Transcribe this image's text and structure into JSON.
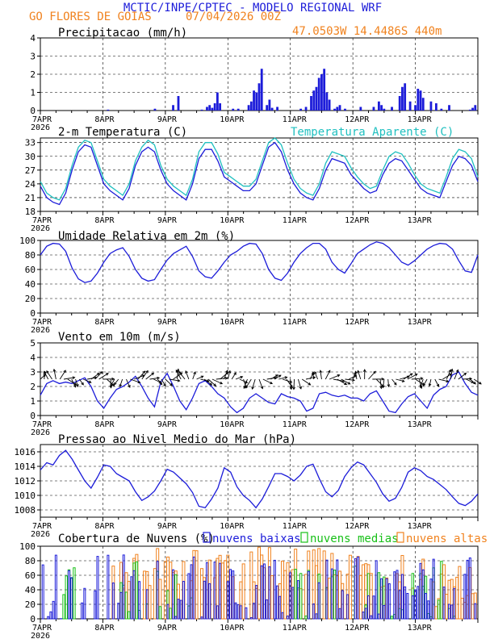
{
  "header": {
    "title": "MCTIC/INPE/CPTEC - MODELO REGIONAL WRF",
    "location": "GO FLORES DE GOIAS",
    "date": "07/04/2026 00Z",
    "coords": "47.0503W 14.4486S 440m"
  },
  "colors": {
    "blue": "#1c1cd9",
    "orange": "#f0821e",
    "cyan": "#20c0c0",
    "green": "#18c018",
    "black": "#000000"
  },
  "x_axis": {
    "ticks": [
      "7APR",
      "8APR",
      "9APR",
      "10APR",
      "11APR",
      "12APR",
      "13APR"
    ],
    "year": "2026",
    "hours_total": 168
  },
  "chart_data": [
    {
      "id": "precip",
      "type": "bar",
      "title": "Precipitacao (mm/h)",
      "ylim": [
        0,
        4
      ],
      "yticks": [
        "0",
        "1",
        "2",
        "3",
        "4"
      ],
      "hours": [
        26,
        44,
        51,
        53,
        62,
        64,
        65,
        66,
        67,
        68,
        69,
        74,
        76,
        80,
        81,
        82,
        83,
        84,
        85,
        87,
        88,
        89,
        91,
        100,
        102,
        104,
        105,
        106,
        107,
        108,
        109,
        110,
        111,
        113,
        114,
        115,
        117,
        123,
        128,
        130,
        131,
        132,
        135,
        138,
        139,
        140,
        142,
        144,
        145,
        146,
        147,
        150,
        152,
        154,
        157,
        165,
        166,
        167
      ],
      "values": [
        0.05,
        0.1,
        0.3,
        0.8,
        0.05,
        0.2,
        0.3,
        0.15,
        0.4,
        1.0,
        0.4,
        0.1,
        0.1,
        0.3,
        0.5,
        1.1,
        1.0,
        1.5,
        2.3,
        0.3,
        0.6,
        0.15,
        0.2,
        0.1,
        0.2,
        0.8,
        1.1,
        1.3,
        1.8,
        2.0,
        2.3,
        1.0,
        0.6,
        0.1,
        0.2,
        0.3,
        0.1,
        0.2,
        0.2,
        0.5,
        0.3,
        0.1,
        0.2,
        0.8,
        1.3,
        1.5,
        0.5,
        0.3,
        1.2,
        1.1,
        0.7,
        0.5,
        0.4,
        0.1,
        0.3,
        0.05,
        0.15,
        0.3
      ]
    },
    {
      "id": "temp",
      "type": "line",
      "title": "2-m Temperatura (C)",
      "legend2": "Temperatura Aparente (C)",
      "ylim": [
        18,
        34
      ],
      "yticks": [
        "18",
        "21",
        "24",
        "27",
        "30",
        "33"
      ],
      "series": [
        {
          "name": "Temperatura",
          "color": "blue",
          "values": [
            23.5,
            21,
            20,
            19.5,
            22,
            27,
            31,
            32.5,
            32,
            28,
            24,
            22.5,
            21.5,
            20.5,
            23,
            28,
            31,
            32,
            31,
            27,
            24,
            22.5,
            21.5,
            20.5,
            24,
            29.5,
            31.5,
            31.5,
            29,
            25.5,
            24.5,
            23.5,
            22.5,
            22.5,
            24,
            28,
            32,
            33,
            31,
            27,
            24,
            22,
            21,
            20.5,
            23,
            27,
            29.5,
            29,
            28.5,
            26,
            24.5,
            23,
            22,
            22.5,
            26,
            28.5,
            29.5,
            29,
            27,
            25,
            23,
            22,
            21.5,
            21,
            24.5,
            28,
            30,
            29.5,
            28,
            24.5
          ]
        },
        {
          "name": "Temperatura Aparente",
          "color": "cyan",
          "values": [
            24.5,
            22,
            21,
            20.5,
            23,
            28,
            32,
            33.5,
            33,
            29,
            25,
            23.5,
            22.5,
            21.5,
            24,
            29,
            32,
            33.5,
            32.5,
            28,
            25,
            23.5,
            22.5,
            21.5,
            25,
            31,
            33,
            33,
            30.5,
            26.5,
            25.5,
            24.5,
            23.5,
            23.5,
            25,
            29,
            33,
            34,
            32.5,
            28.5,
            25,
            23,
            22,
            21.5,
            24,
            28.5,
            31,
            30.5,
            30,
            27.5,
            25.5,
            24,
            23,
            23.5,
            27,
            30,
            31,
            30.5,
            28.5,
            26,
            24,
            23,
            22.5,
            22,
            25.5,
            29.5,
            31.5,
            31,
            29.5,
            25.5
          ]
        }
      ]
    },
    {
      "id": "rh",
      "type": "line",
      "title": "Umidade Relativa em 2m (%)",
      "ylim": [
        0,
        100
      ],
      "yticks": [
        "0",
        "20",
        "40",
        "60",
        "80",
        "100"
      ],
      "series": [
        {
          "name": "Umidade Relativa",
          "color": "blue",
          "values": [
            80,
            92,
            96,
            95,
            85,
            62,
            47,
            42,
            44,
            55,
            70,
            82,
            87,
            90,
            78,
            60,
            48,
            44,
            46,
            60,
            73,
            82,
            87,
            92,
            78,
            58,
            50,
            48,
            58,
            70,
            80,
            85,
            92,
            96,
            95,
            82,
            60,
            48,
            45,
            55,
            70,
            82,
            90,
            96,
            96,
            88,
            70,
            60,
            55,
            68,
            82,
            88,
            94,
            98,
            96,
            90,
            80,
            70,
            66,
            72,
            80,
            88,
            93,
            96,
            95,
            88,
            72,
            58,
            56,
            80
          ]
        }
      ]
    },
    {
      "id": "wind",
      "type": "line",
      "title": "Vento em 10m (m/s)",
      "ylim": [
        0,
        5
      ],
      "yticks": [
        "0",
        "1",
        "2",
        "3",
        "4",
        "5"
      ],
      "series": [
        {
          "name": "Vento",
          "color": "blue",
          "values": [
            1.4,
            2.2,
            2.4,
            2.2,
            2.3,
            2.2,
            2.4,
            2.6,
            2.0,
            1.0,
            0.5,
            1.2,
            1.8,
            2.0,
            2.3,
            2.7,
            2.0,
            1.2,
            0.6,
            2.3,
            2.9,
            2.0,
            1.0,
            0.4,
            1.2,
            2.2,
            2.4,
            2.0,
            1.5,
            1.2,
            0.6,
            0.2,
            0.5,
            1.2,
            1.5,
            1.2,
            0.9,
            0.8,
            1.5,
            1.3,
            1.2,
            1.0,
            0.3,
            0.5,
            1.5,
            1.6,
            1.4,
            1.3,
            1.4,
            1.2,
            1.2,
            1.0,
            1.5,
            1.7,
            1.0,
            0.3,
            0.2,
            0.8,
            1.3,
            1.5,
            1.0,
            0.5,
            1.4,
            1.8,
            2.0,
            2.8,
            3.0,
            2.2,
            1.6,
            1.4
          ]
        }
      ]
    },
    {
      "id": "pressure",
      "type": "line",
      "title": "Pressao ao Nivel Medio do Mar (hPa)",
      "ylim": [
        1007,
        1017
      ],
      "yticks": [
        "1008",
        "1010",
        "1012",
        "1014",
        "1016"
      ],
      "series": [
        {
          "name": "Pressao",
          "color": "blue",
          "values": [
            1013.5,
            1014.5,
            1014.2,
            1015.5,
            1016.2,
            1015,
            1013.5,
            1012,
            1011,
            1012.5,
            1014.2,
            1014,
            1013,
            1012.5,
            1012,
            1010.5,
            1009.3,
            1009.8,
            1010.6,
            1012,
            1013.6,
            1013.2,
            1012.4,
            1011.6,
            1010.4,
            1008.5,
            1008.3,
            1009.5,
            1011,
            1013.8,
            1013.2,
            1011.2,
            1010,
            1009.3,
            1008.3,
            1009.5,
            1011.2,
            1013,
            1013,
            1012.6,
            1012,
            1012.8,
            1014,
            1014.3,
            1012.3,
            1010.5,
            1009.8,
            1010.7,
            1012.6,
            1013.8,
            1014.6,
            1014.2,
            1013,
            1011.8,
            1010.2,
            1009.2,
            1009.6,
            1011.1,
            1013.2,
            1013.8,
            1013.4,
            1012.6,
            1012.2,
            1011.5,
            1010.8,
            1009.8,
            1008.9,
            1008.6,
            1009.2,
            1010.2
          ]
        }
      ]
    },
    {
      "id": "clouds",
      "type": "bar",
      "title": "Cobertura de Nuvens (%)",
      "legend": [
        "nuvens baixas",
        "nuvens medias",
        "nuvens altas"
      ],
      "ylim": [
        0,
        100
      ],
      "yticks": [
        "0",
        "20",
        "40",
        "60",
        "80",
        "100"
      ]
    }
  ]
}
